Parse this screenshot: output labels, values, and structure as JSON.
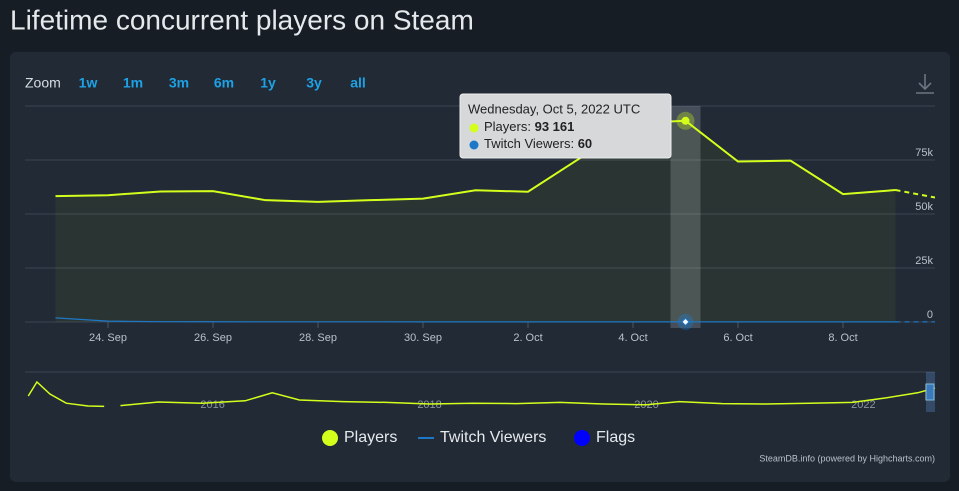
{
  "page_title": "Lifetime concurrent players on Steam",
  "zoom": {
    "label": "Zoom",
    "buttons": [
      "1w",
      "1m",
      "3m",
      "6m",
      "1y",
      "3y",
      "all"
    ]
  },
  "chart_data": {
    "type": "line",
    "categories": [
      null,
      "24. Sep",
      null,
      "26. Sep",
      null,
      "28. Sep",
      null,
      "30. Sep",
      null,
      "2. Oct",
      null,
      "4. Oct",
      null,
      "6. Oct",
      null,
      "8. Oct",
      null,
      null
    ],
    "series": [
      {
        "name": "Players",
        "color": "#d4ff1c",
        "values": [
          58300,
          58700,
          60400,
          60600,
          56400,
          55600,
          56400,
          57100,
          61000,
          60300,
          76000,
          92000,
          93161,
          74300,
          74700,
          59200,
          61100,
          56500
        ]
      },
      {
        "name": "Twitch Viewers",
        "color": "#1e78c8",
        "values": [
          1900,
          400,
          150,
          100,
          90,
          80,
          80,
          70,
          70,
          60,
          60,
          60,
          60,
          60,
          60,
          60,
          60,
          60
        ]
      }
    ],
    "flags": {
      "name": "Flags",
      "color": "#0000ff"
    },
    "ylim": [
      0,
      100000
    ],
    "yticks": [
      0,
      {
        "value": 25000,
        "label": "25k"
      },
      {
        "value": 50000,
        "label": "50k"
      },
      {
        "value": 75000,
        "label": "75k"
      }
    ],
    "grid": true,
    "tooltip": {
      "header": "Wednesday, Oct 5, 2022 UTC",
      "index": 12,
      "rows": [
        {
          "label": "Players:",
          "value": "93 161"
        },
        {
          "label": "Twitch Viewers:",
          "value": "60"
        }
      ]
    },
    "navigator": {
      "xlim": [
        2014.27,
        2022.66
      ],
      "ylim": [
        0,
        100000
      ],
      "xticks": [
        2016,
        2018,
        2020,
        2022
      ],
      "x": [
        2014.3,
        2014.38,
        2014.5,
        2014.65,
        2014.85,
        2015.0,
        2015.1,
        2015.15,
        2015.5,
        2015.9,
        2016.3,
        2016.55,
        2016.8,
        2017.2,
        2017.6,
        2018.0,
        2018.4,
        2018.8,
        2019.2,
        2019.6,
        2020.0,
        2020.3,
        2020.7,
        2021.1,
        2021.5,
        2021.9,
        2022.2,
        2022.5,
        2022.66
      ],
      "values": [
        40000,
        75000,
        45000,
        22000,
        15000,
        14000,
        null,
        16000,
        25000,
        22000,
        28000,
        48000,
        30000,
        26000,
        24000,
        20000,
        22000,
        21000,
        24000,
        20000,
        18000,
        26000,
        21000,
        20000,
        22000,
        24000,
        35000,
        48000,
        60000
      ]
    },
    "credit": "SteamDB.info (powered by Highcharts.com)"
  }
}
